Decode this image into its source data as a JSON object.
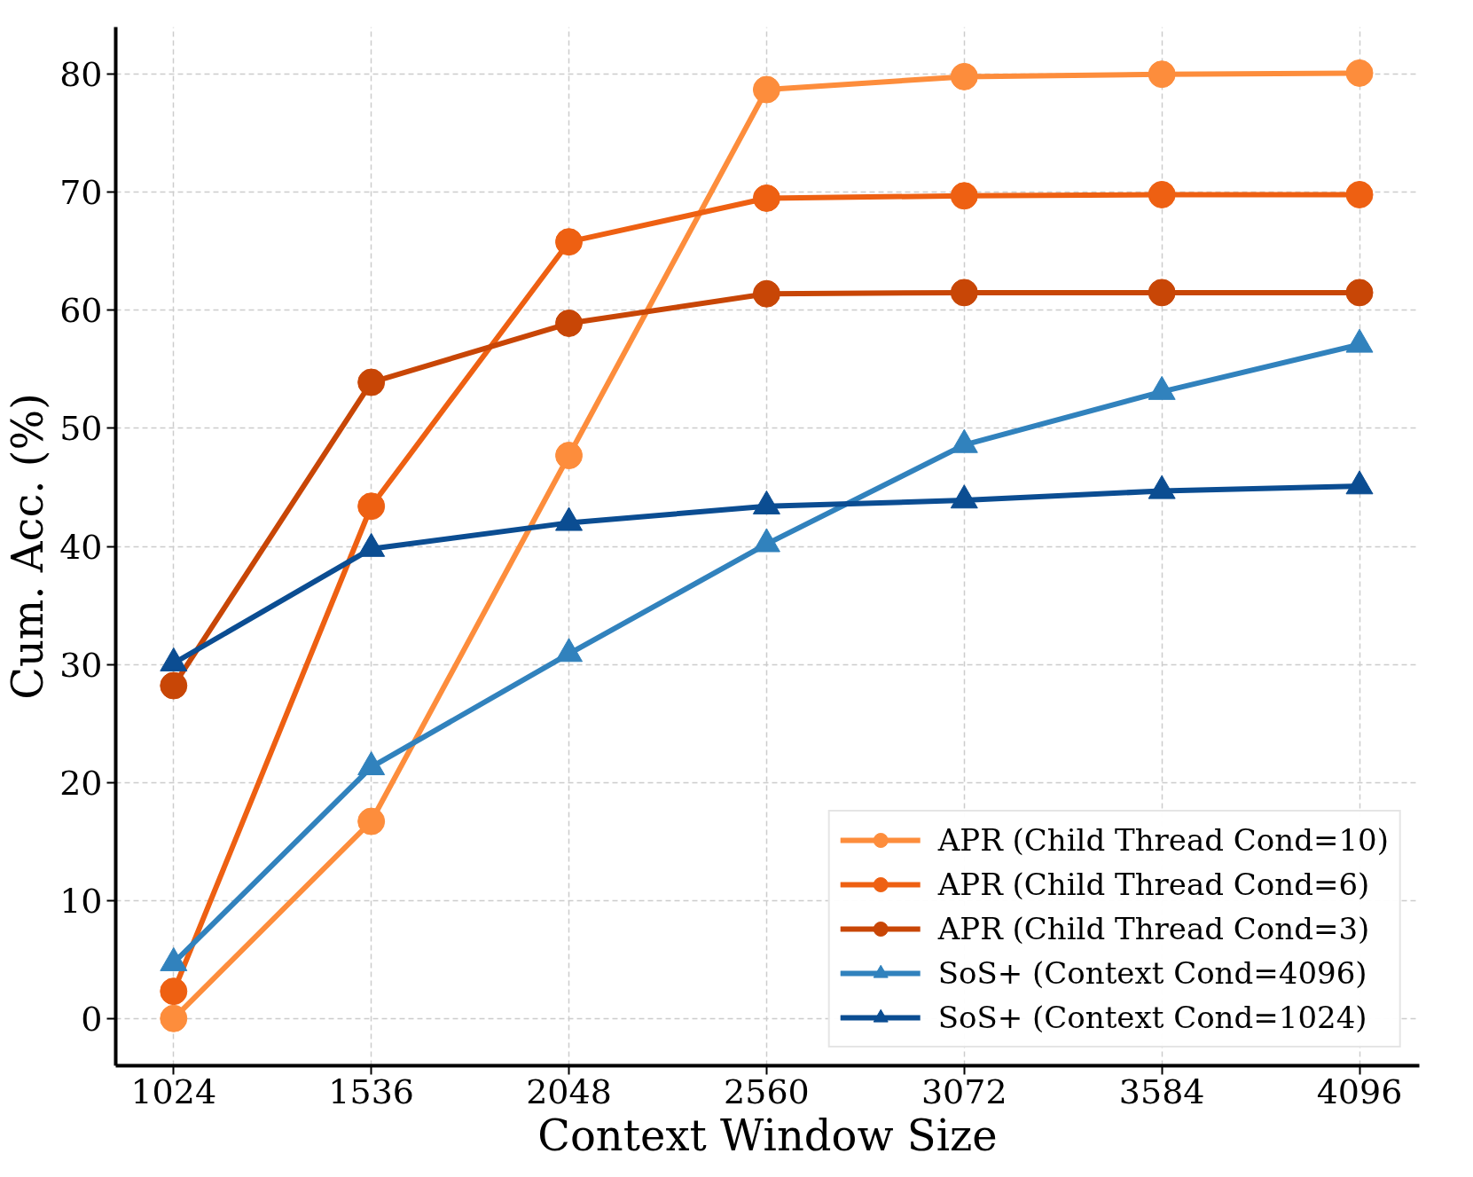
{
  "chart_data": {
    "type": "line",
    "xlabel": "Context Window Size",
    "ylabel": "Cum. Acc. (%)",
    "x": [
      1024,
      1536,
      2048,
      2560,
      3072,
      3584,
      4096
    ],
    "xlim": [
      874,
      4251
    ],
    "xticks": [
      1024,
      1536,
      2048,
      2560,
      3072,
      3584,
      4096
    ],
    "ylim": [
      -4,
      84
    ],
    "yticks": [
      0,
      10,
      20,
      30,
      40,
      50,
      60,
      70,
      80
    ],
    "grid": true,
    "legend": "bottom right",
    "series": [
      {
        "name": "APR (Child Thread Cond=10)",
        "color": "#fd8d3c",
        "marker": "circle",
        "values": [
          0,
          16.7,
          47.7,
          78.7,
          79.8,
          80.0,
          80.1
        ]
      },
      {
        "name": "APR (Child Thread Cond=6)",
        "color": "#ee6012",
        "marker": "circle",
        "values": [
          2.3,
          43.4,
          65.8,
          69.5,
          69.7,
          69.8,
          69.8
        ]
      },
      {
        "name": "APR (Child Thread Cond=3)",
        "color": "#c84606",
        "marker": "circle",
        "values": [
          28.2,
          53.9,
          58.9,
          61.4,
          61.5,
          61.5,
          61.5
        ]
      },
      {
        "name": "SoS+ (Context Cond=4096)",
        "color": "#3182bd",
        "marker": "triangle",
        "values": [
          4.7,
          21.3,
          30.9,
          40.2,
          48.6,
          53.1,
          57.1
        ]
      },
      {
        "name": "SoS+ (Context Cond=1024)",
        "color": "#0b4d92",
        "marker": "triangle",
        "values": [
          30.1,
          39.8,
          42.0,
          43.4,
          43.9,
          44.7,
          45.1
        ]
      }
    ]
  }
}
